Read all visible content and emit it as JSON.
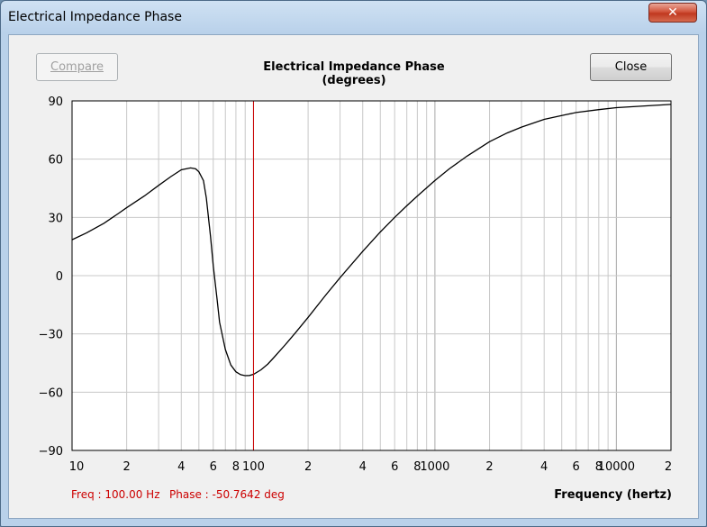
{
  "window": {
    "title": "Electrical Impedance Phase",
    "close_glyph": "✕"
  },
  "toolbar": {
    "compare_label": "Compare",
    "close_label": "Close"
  },
  "status": {
    "freq_text": "Freq : 100.00 Hz",
    "phase_text": "Phase : -50.7642 deg"
  },
  "colors": {
    "curve": "#000000",
    "cursor": "#cc0000",
    "grid": "#c8c8c8",
    "grid_major": "#a8a8a8"
  },
  "chart_data": {
    "type": "line",
    "title": "Electrical Impedance Phase (degrees)",
    "xlabel": "Frequency (hertz)",
    "ylabel": "",
    "xscale": "log",
    "xlim": [
      10,
      20000
    ],
    "ylim": [
      -90,
      90
    ],
    "grid": true,
    "yticks": [
      90,
      60,
      30,
      0,
      -30,
      -60,
      -90
    ],
    "ytick_labels": [
      "90",
      "60",
      "30",
      "0",
      "−30",
      "−60",
      "−90"
    ],
    "xticks": [
      10,
      20,
      40,
      60,
      80,
      100,
      200,
      400,
      600,
      800,
      1000,
      2000,
      4000,
      6000,
      8000,
      10000,
      20000
    ],
    "xtick_labels": [
      "10",
      "2",
      "4",
      "6",
      "8",
      "100",
      "2",
      "4",
      "6",
      "8",
      "1000",
      "2",
      "4",
      "6",
      "8",
      "10000",
      "2"
    ],
    "cursor": {
      "x": 100,
      "y": -50.7642
    },
    "series": [
      {
        "x": [
          10,
          12,
          15,
          18,
          20,
          25,
          30,
          35,
          40,
          45,
          48,
          50,
          53,
          55,
          58,
          60,
          63,
          65,
          70,
          75,
          80,
          85,
          90,
          95,
          100,
          110,
          120,
          130,
          150,
          170,
          200,
          250,
          300,
          400,
          500,
          600,
          700,
          800,
          1000,
          1200,
          1500,
          2000,
          2500,
          3000,
          4000,
          5000,
          6000,
          8000,
          10000,
          15000,
          20000
        ],
        "y": [
          18.5,
          22,
          27,
          32,
          35,
          41,
          46.5,
          51,
          54.5,
          55.5,
          55,
          53.5,
          49,
          40,
          20,
          5,
          -12,
          -24,
          -38,
          -46,
          -49.5,
          -51,
          -51.5,
          -51.4,
          -50.8,
          -48.5,
          -45.5,
          -42,
          -35.5,
          -29.5,
          -21.5,
          -10,
          -1,
          12.5,
          22.5,
          30,
          36,
          41,
          49,
          55,
          61.5,
          69,
          73.5,
          76.5,
          80.5,
          82.5,
          84,
          85.5,
          86.5,
          87.5,
          88.2
        ]
      }
    ]
  }
}
